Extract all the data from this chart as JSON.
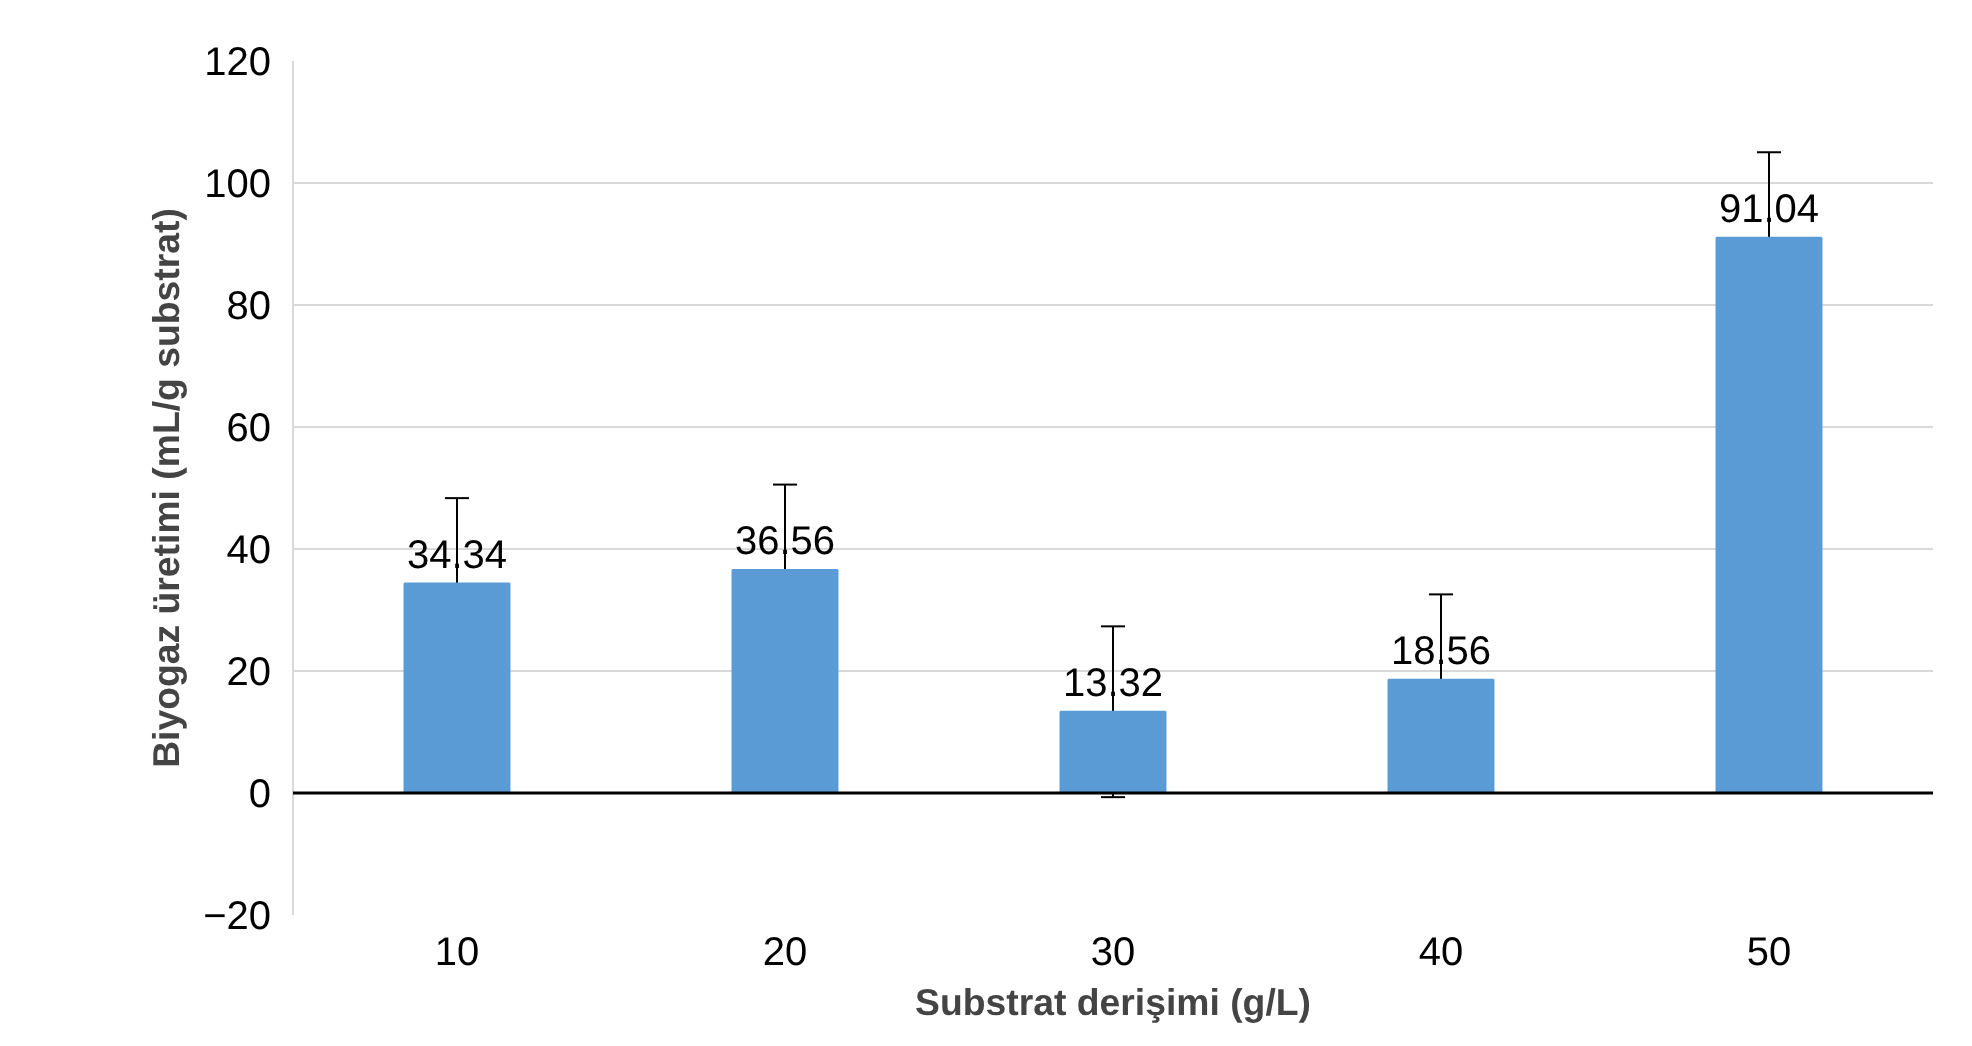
{
  "chart_data": {
    "type": "bar",
    "xlabel": "Substrat derişimi (g/L)",
    "ylabel": "Biyogaz üretimi (mL/g substrat)",
    "categories": [
      "10",
      "20",
      "30",
      "40",
      "50"
    ],
    "values": [
      34.34,
      36.56,
      13.32,
      18.56,
      91.04
    ],
    "errors": [
      14,
      14,
      14,
      14,
      14
    ],
    "color": "#5b9bd5",
    "data_labels": true,
    "ylim": [
      -20,
      120
    ],
    "yticks": [
      -20,
      0,
      20,
      40,
      60,
      80,
      100,
      120
    ],
    "grid": "y"
  }
}
